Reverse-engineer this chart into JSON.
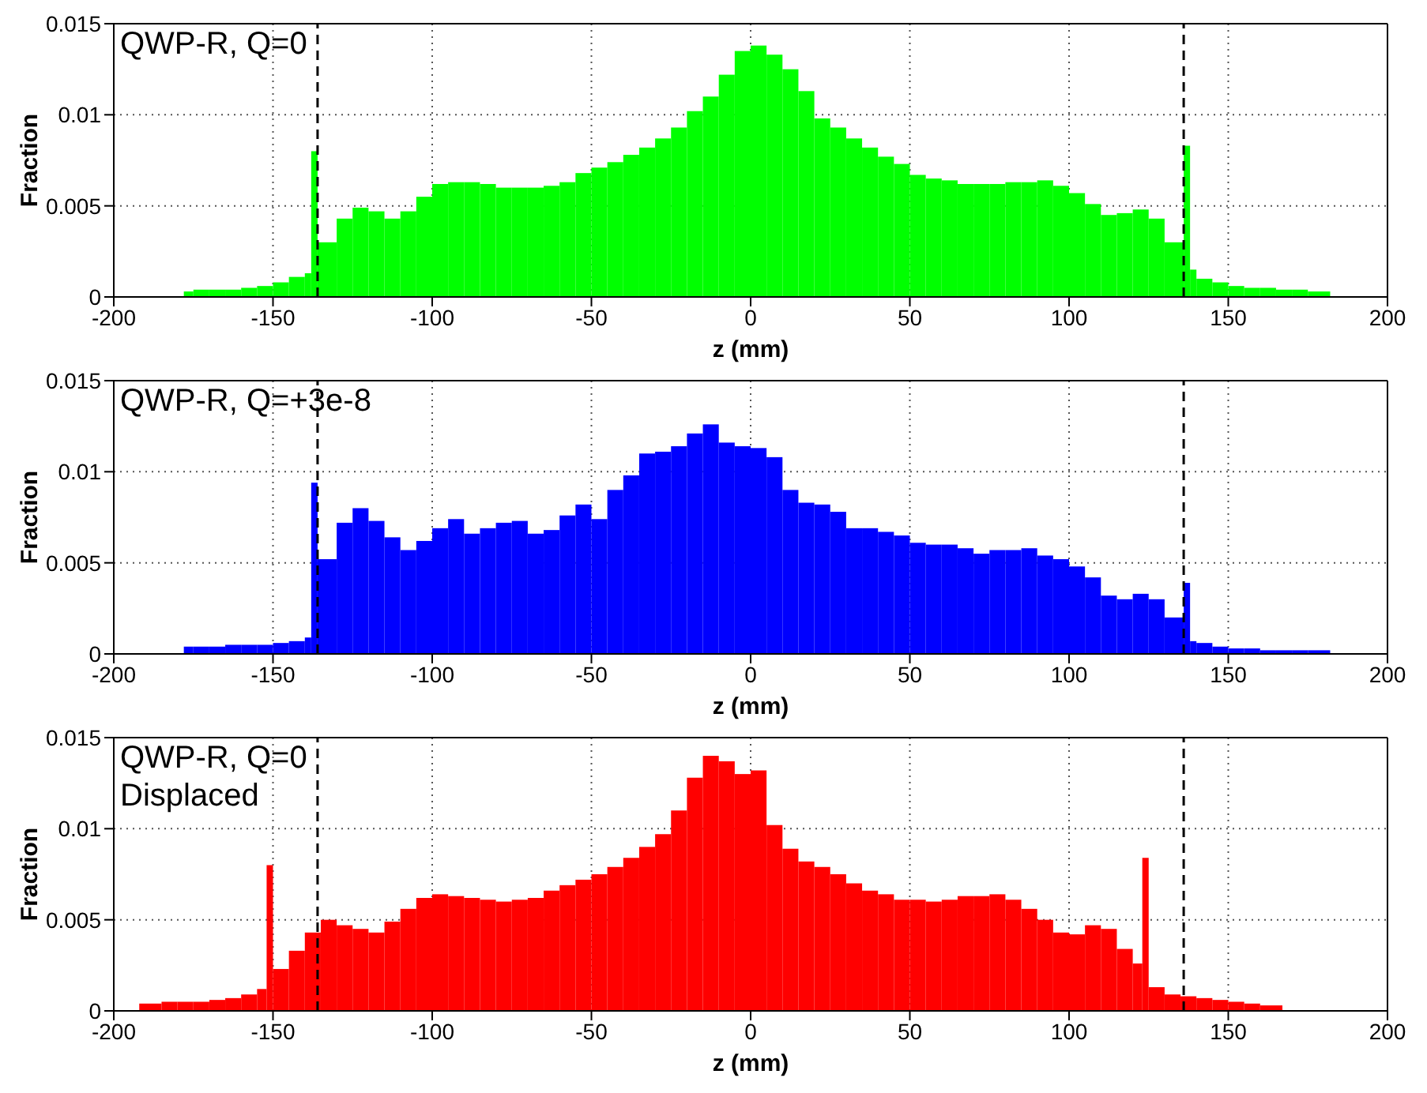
{
  "chart_data": [
    {
      "type": "histogram",
      "title": "QWP-R, Q=0",
      "xlabel": "z (mm)",
      "ylabel": "Fraction",
      "color": "#00ff00",
      "bins": [
        -178,
        -175,
        -170,
        -165,
        -160,
        -155,
        -150,
        -145,
        -140,
        -138,
        -136,
        -130,
        -125,
        -120,
        -115,
        -110,
        -105,
        -100,
        -95,
        -90,
        -85,
        -80,
        -75,
        -70,
        -65,
        -60,
        -55,
        -50,
        -45,
        -40,
        -35,
        -30,
        -25,
        -20,
        -15,
        -10,
        -5,
        0,
        5,
        10,
        15,
        20,
        25,
        30,
        35,
        40,
        45,
        50,
        55,
        60,
        65,
        70,
        75,
        80,
        85,
        90,
        95,
        100,
        105,
        110,
        115,
        120,
        125,
        130,
        136,
        138,
        140,
        145,
        150,
        155,
        160,
        165,
        170,
        175,
        182
      ],
      "values": [
        0.0003,
        0.0004,
        0.0004,
        0.0004,
        0.0005,
        0.0006,
        0.0008,
        0.0011,
        0.0013,
        0.008,
        0.003,
        0.0043,
        0.0049,
        0.0047,
        0.0043,
        0.0047,
        0.0055,
        0.0062,
        0.0063,
        0.0063,
        0.0062,
        0.006,
        0.006,
        0.006,
        0.0061,
        0.0063,
        0.0068,
        0.0071,
        0.0074,
        0.0078,
        0.0082,
        0.0087,
        0.0093,
        0.0102,
        0.011,
        0.0122,
        0.0135,
        0.0138,
        0.0133,
        0.0125,
        0.0113,
        0.0098,
        0.0093,
        0.0087,
        0.0082,
        0.0077,
        0.0073,
        0.0067,
        0.0065,
        0.0064,
        0.0062,
        0.0062,
        0.0062,
        0.0063,
        0.0063,
        0.0064,
        0.0061,
        0.0057,
        0.0051,
        0.0045,
        0.0046,
        0.0048,
        0.0043,
        0.003,
        0.0083,
        0.0015,
        0.001,
        0.0008,
        0.0006,
        0.0005,
        0.0005,
        0.0004,
        0.0004,
        0.0003
      ],
      "xlim": [
        -200,
        200
      ],
      "xticks": [
        -200,
        -150,
        -100,
        -50,
        0,
        50,
        100,
        150,
        200
      ],
      "ylim": [
        0,
        0.015
      ],
      "yticks": [
        0,
        0.005,
        0.01,
        0.015
      ],
      "grid": true,
      "ref_lines": [
        {
          "axis": "x",
          "value": -136,
          "color": "#000000",
          "line_style": "dashed"
        },
        {
          "axis": "x",
          "value": 136,
          "color": "#000000",
          "line_style": "dashed"
        }
      ]
    },
    {
      "type": "histogram",
      "title": "QWP-R, Q=+3e-8",
      "xlabel": "z (mm)",
      "ylabel": "Fraction",
      "color": "#0000ff",
      "bins": [
        -178,
        -175,
        -170,
        -165,
        -160,
        -155,
        -150,
        -145,
        -140,
        -138,
        -136,
        -130,
        -125,
        -120,
        -115,
        -110,
        -105,
        -100,
        -95,
        -90,
        -85,
        -80,
        -75,
        -70,
        -65,
        -60,
        -55,
        -50,
        -45,
        -40,
        -35,
        -30,
        -25,
        -20,
        -15,
        -10,
        -5,
        0,
        5,
        10,
        15,
        20,
        25,
        30,
        35,
        40,
        45,
        50,
        55,
        60,
        65,
        70,
        75,
        80,
        85,
        90,
        95,
        100,
        105,
        110,
        115,
        120,
        125,
        130,
        136,
        138,
        140,
        145,
        150,
        155,
        160,
        165,
        170,
        175,
        182
      ],
      "values": [
        0.0004,
        0.0004,
        0.0004,
        0.0005,
        0.0005,
        0.0005,
        0.0006,
        0.0007,
        0.0009,
        0.0094,
        0.0052,
        0.0072,
        0.008,
        0.0073,
        0.0064,
        0.0057,
        0.0062,
        0.0069,
        0.0074,
        0.0066,
        0.0069,
        0.0072,
        0.0073,
        0.0066,
        0.0068,
        0.0076,
        0.0082,
        0.0074,
        0.009,
        0.0098,
        0.011,
        0.0111,
        0.0114,
        0.0121,
        0.0126,
        0.0116,
        0.0114,
        0.0113,
        0.0108,
        0.009,
        0.0083,
        0.0082,
        0.0078,
        0.0069,
        0.0069,
        0.0067,
        0.0065,
        0.0061,
        0.006,
        0.006,
        0.0058,
        0.0055,
        0.0057,
        0.0057,
        0.0058,
        0.0054,
        0.0052,
        0.0048,
        0.0042,
        0.0032,
        0.003,
        0.0033,
        0.003,
        0.002,
        0.0039,
        0.0007,
        0.0006,
        0.0004,
        0.0003,
        0.0003,
        0.0002,
        0.0002,
        0.0002,
        0.0002
      ],
      "xlim": [
        -200,
        200
      ],
      "xticks": [
        -200,
        -150,
        -100,
        -50,
        0,
        50,
        100,
        150,
        200
      ],
      "ylim": [
        0,
        0.015
      ],
      "yticks": [
        0,
        0.005,
        0.01,
        0.015
      ],
      "grid": true,
      "ref_lines": [
        {
          "axis": "x",
          "value": -136,
          "color": "#000000",
          "line_style": "dashed"
        },
        {
          "axis": "x",
          "value": 136,
          "color": "#000000",
          "line_style": "dashed"
        }
      ]
    },
    {
      "type": "histogram",
      "title": "QWP-R, Q=0",
      "subtitle": "Displaced",
      "xlabel": "z (mm)",
      "ylabel": "Fraction",
      "color": "#ff0000",
      "bins": [
        -192,
        -185,
        -180,
        -175,
        -170,
        -165,
        -160,
        -155,
        -152,
        -150,
        -145,
        -140,
        -135,
        -130,
        -125,
        -120,
        -115,
        -110,
        -105,
        -100,
        -95,
        -90,
        -85,
        -80,
        -75,
        -70,
        -65,
        -60,
        -55,
        -50,
        -45,
        -40,
        -35,
        -30,
        -25,
        -20,
        -15,
        -10,
        -5,
        0,
        5,
        10,
        15,
        20,
        25,
        30,
        35,
        40,
        45,
        50,
        55,
        60,
        65,
        70,
        75,
        80,
        85,
        90,
        95,
        100,
        105,
        110,
        115,
        120,
        123,
        125,
        130,
        135,
        140,
        145,
        150,
        155,
        160,
        167
      ],
      "values": [
        0.0004,
        0.0005,
        0.0005,
        0.0005,
        0.0006,
        0.0007,
        0.0009,
        0.0012,
        0.008,
        0.0023,
        0.0033,
        0.0043,
        0.005,
        0.0047,
        0.0045,
        0.0043,
        0.0049,
        0.0056,
        0.0062,
        0.0064,
        0.0063,
        0.0062,
        0.0061,
        0.006,
        0.0061,
        0.0062,
        0.0066,
        0.0069,
        0.0072,
        0.0075,
        0.0079,
        0.0084,
        0.009,
        0.0097,
        0.011,
        0.0128,
        0.014,
        0.0137,
        0.013,
        0.0132,
        0.0102,
        0.0089,
        0.0082,
        0.0079,
        0.0075,
        0.007,
        0.0066,
        0.0064,
        0.0061,
        0.0061,
        0.006,
        0.0061,
        0.0063,
        0.0063,
        0.0064,
        0.0061,
        0.0056,
        0.005,
        0.0043,
        0.0042,
        0.0047,
        0.0045,
        0.0034,
        0.0026,
        0.0084,
        0.0013,
        0.0009,
        0.0008,
        0.0007,
        0.0006,
        0.0005,
        0.0004,
        0.0003
      ],
      "xlim": [
        -200,
        200
      ],
      "xticks": [
        -200,
        -150,
        -100,
        -50,
        0,
        50,
        100,
        150,
        200
      ],
      "ylim": [
        0,
        0.015
      ],
      "yticks": [
        0,
        0.005,
        0.01,
        0.015
      ],
      "grid": true,
      "ref_lines": [
        {
          "axis": "x",
          "value": -136,
          "color": "#000000",
          "line_style": "dashed"
        },
        {
          "axis": "x",
          "value": 136,
          "color": "#000000",
          "line_style": "dashed"
        }
      ]
    }
  ]
}
